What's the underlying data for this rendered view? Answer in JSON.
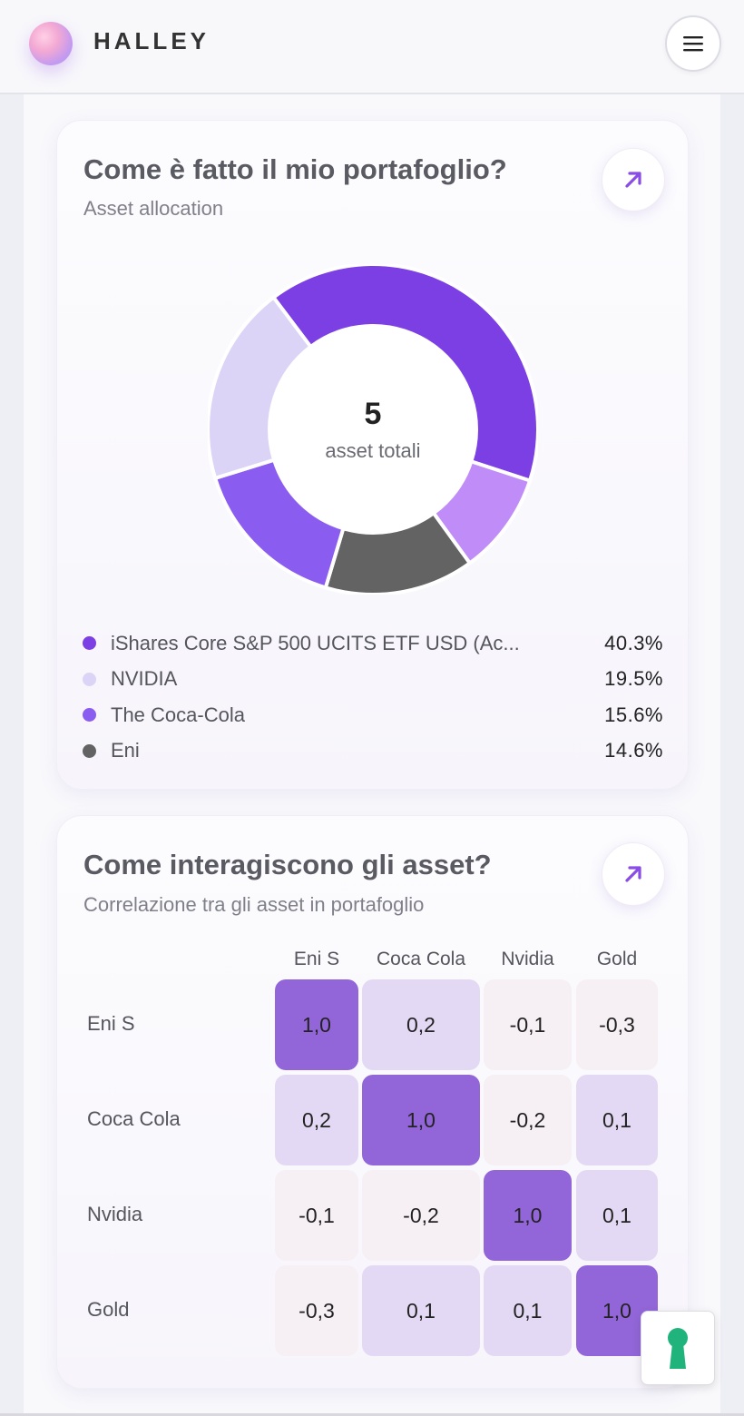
{
  "header": {
    "brand": "HALLEY",
    "logo_icon": "halley-blob-logo",
    "menu_icon": "hamburger-icon"
  },
  "allocation_card": {
    "title": "Come è fatto il mio portafoglio?",
    "subtitle": "Asset allocation",
    "open_icon": "arrow-up-right-icon",
    "center_count": "5",
    "center_label": "asset totali",
    "legend": [
      {
        "name": "iShares Core S&P 500 UCITS ETF USD (Ac...",
        "value": "40.3%",
        "color": "#7b3fe4"
      },
      {
        "name": "NVIDIA",
        "value": "19.5%",
        "color": "#dcd4f6"
      },
      {
        "name": "The Coca-Cola",
        "value": "15.6%",
        "color": "#8b5cf0"
      },
      {
        "name": "Eni",
        "value": "14.6%",
        "color": "#636363"
      }
    ]
  },
  "chart_data": {
    "type": "pie",
    "categories": [
      "iShares Core S&P 500 UCITS ETF USD (Ac...",
      "",
      "Eni",
      "The Coca-Cola",
      "NVIDIA"
    ],
    "values": [
      40.3,
      10.0,
      14.6,
      15.6,
      19.5
    ],
    "colors": [
      "#7b3fe4",
      "#bf8cf8",
      "#636363",
      "#8b5cf0",
      "#dcd4f6"
    ],
    "donut": true
  },
  "correlation_card": {
    "title": "Come interagiscono gli asset?",
    "subtitle": "Correlazione tra gli asset in portafoglio",
    "open_icon": "arrow-up-right-icon",
    "columns": [
      "Eni S",
      "Coca Cola",
      "Nvidia",
      "Gold"
    ],
    "rows": [
      {
        "label": "Eni S",
        "values": [
          "1,0",
          "0,2",
          "-0,1",
          "-0,3"
        ]
      },
      {
        "label": "Coca Cola",
        "values": [
          "0,2",
          "1,0",
          "-0,2",
          "0,1"
        ]
      },
      {
        "label": "Nvidia",
        "values": [
          "-0,1",
          "-0,2",
          "1,0",
          "0,1"
        ]
      },
      {
        "label": "Gold",
        "values": [
          "-0,3",
          "0,1",
          "0,1",
          "1,0"
        ]
      }
    ],
    "colors": {
      "strong": "#9266d8",
      "positive_weak": "#e4d9f4",
      "negative": "#f6f0f4"
    }
  },
  "help_widget": {
    "icon": "keyhole-icon",
    "color": "#20b47c"
  }
}
